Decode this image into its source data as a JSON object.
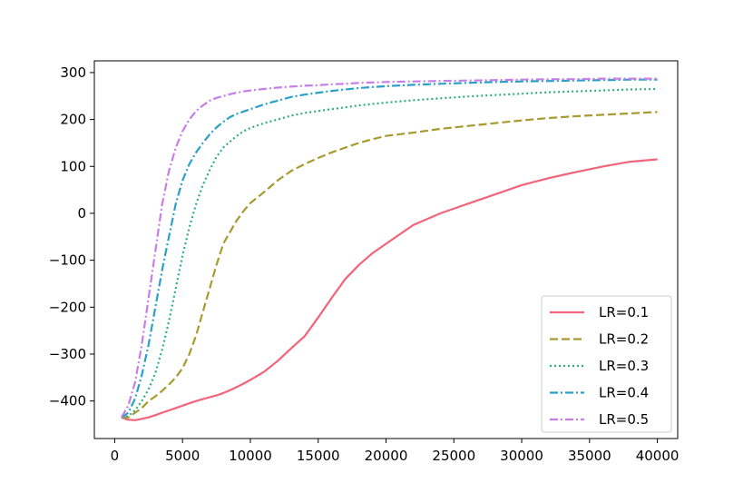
{
  "chart_data": {
    "type": "line",
    "title": "",
    "xlabel": "",
    "ylabel": "",
    "xlim": [
      -1500,
      41500
    ],
    "ylim": [
      -480,
      325
    ],
    "x_ticks": [
      0,
      5000,
      10000,
      15000,
      20000,
      25000,
      30000,
      35000,
      40000
    ],
    "x_tick_labels": [
      "0",
      "5000",
      "10000",
      "15000",
      "20000",
      "25000",
      "30000",
      "35000",
      "40000"
    ],
    "y_ticks": [
      -400,
      -300,
      -200,
      -100,
      0,
      100,
      200,
      300
    ],
    "y_tick_labels": [
      "−400",
      "−300",
      "−200",
      "−100",
      "0",
      "100",
      "200",
      "300"
    ],
    "grid": false,
    "legend_position": "lower-right",
    "x": [
      500,
      1000,
      1500,
      2000,
      2500,
      3000,
      3500,
      4000,
      4500,
      5000,
      5500,
      6000,
      6500,
      7000,
      7500,
      8000,
      8500,
      9000,
      9500,
      10000,
      11000,
      12000,
      13000,
      14000,
      15000,
      16000,
      17000,
      18000,
      19000,
      20000,
      22000,
      24000,
      26000,
      28000,
      30000,
      32000,
      34000,
      36000,
      38000,
      40000
    ],
    "series": [
      {
        "name": "LR=0.1",
        "color": "#f0657a",
        "dash": "solid",
        "values": [
          -435,
          -440,
          -441,
          -438,
          -435,
          -430,
          -425,
          -420,
          -415,
          -410,
          -405,
          -400,
          -396,
          -392,
          -388,
          -383,
          -377,
          -370,
          -363,
          -355,
          -338,
          -315,
          -288,
          -262,
          -222,
          -180,
          -140,
          -110,
          -85,
          -65,
          -25,
          0,
          20,
          40,
          60,
          75,
          88,
          100,
          110,
          115
        ]
      },
      {
        "name": "LR=0.2",
        "color": "#a89a2e",
        "dash": "dashed",
        "values": [
          -435,
          -435,
          -425,
          -415,
          -400,
          -390,
          -378,
          -365,
          -350,
          -330,
          -300,
          -260,
          -210,
          -160,
          -110,
          -65,
          -40,
          -15,
          5,
          22,
          45,
          70,
          90,
          105,
          118,
          130,
          140,
          150,
          158,
          165,
          172,
          180,
          186,
          192,
          198,
          203,
          207,
          210,
          213,
          216
        ]
      },
      {
        "name": "LR=0.3",
        "color": "#2fb07a",
        "dash": "dotted",
        "values": [
          -435,
          -432,
          -420,
          -400,
          -375,
          -340,
          -290,
          -230,
          -160,
          -90,
          -30,
          20,
          60,
          92,
          120,
          140,
          153,
          165,
          175,
          182,
          192,
          200,
          208,
          214,
          218,
          222,
          226,
          230,
          233,
          236,
          241,
          245,
          249,
          252,
          255,
          258,
          260,
          262,
          264,
          265
        ]
      },
      {
        "name": "LR=0.4",
        "color": "#2aa0c8",
        "dash": "dashdot",
        "values": [
          -435,
          -425,
          -395,
          -345,
          -280,
          -200,
          -120,
          -50,
          20,
          70,
          105,
          130,
          150,
          168,
          183,
          195,
          205,
          212,
          217,
          222,
          232,
          240,
          248,
          253,
          257,
          261,
          264,
          267,
          269,
          271,
          274,
          276,
          278,
          280,
          281,
          282,
          283,
          284,
          285,
          285
        ]
      },
      {
        "name": "LR=0.5",
        "color": "#c77ee8",
        "dash": "dashdot",
        "values": [
          -435,
          -410,
          -360,
          -280,
          -180,
          -80,
          20,
          90,
          140,
          175,
          200,
          218,
          230,
          240,
          246,
          250,
          254,
          257,
          260,
          262,
          265,
          268,
          270,
          272,
          273,
          275,
          276,
          278,
          279,
          280,
          281,
          282,
          283,
          284,
          285,
          286,
          286,
          287,
          287,
          287
        ]
      }
    ]
  }
}
